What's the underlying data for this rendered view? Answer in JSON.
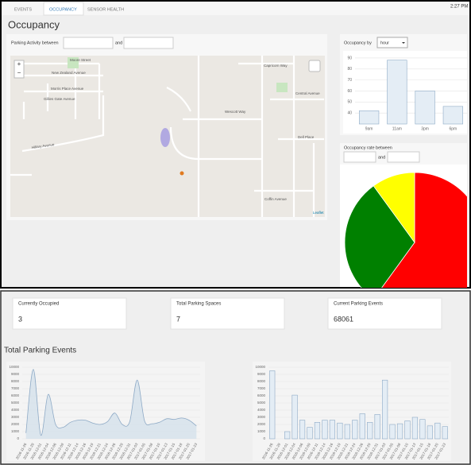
{
  "tabs": [
    "EVENTS",
    "OCCUPANCY",
    "SENSOR HEALTH"
  ],
  "clock": "2:27 PM",
  "page_title": "Occupancy",
  "activity_filter": {
    "label": "Parking Activity between",
    "and": "and"
  },
  "map": {
    "zoom_in": "+",
    "zoom_out": "−",
    "attribution": "Leaflet",
    "labels": [
      "Moore Street",
      "New Zealand Avenue",
      "Morris Place Avenue",
      "Gillies Gate Avenue",
      "Hillary Avenue",
      "Capricorn Way",
      "Central Avenue",
      "Wescott Way",
      "Dell Place",
      "Coffin Avenue"
    ]
  },
  "occupancy_by": {
    "label": "Occupancy by",
    "select": "hour"
  },
  "rate_filter": {
    "label": "Occupancy rate between",
    "and": "and"
  },
  "cards": [
    {
      "label": "Currently Occupied",
      "value": 3
    },
    {
      "label": "Total Parking Spaces",
      "value": 7
    },
    {
      "label": "Current Parking Events",
      "value": 68061
    }
  ],
  "events_title": "Total Parking Events",
  "chart_data": [
    {
      "type": "bar",
      "categories": [
        "9am",
        "11am",
        "3pm",
        "6pm"
      ],
      "values": [
        42,
        88,
        60,
        46
      ],
      "color": "#e4edf5",
      "edge_color": "#8eaac6",
      "ylim": [
        30,
        95
      ],
      "yticks": [
        40,
        50,
        60,
        70,
        80,
        90
      ],
      "grid": true
    },
    {
      "type": "pie",
      "values": [
        60,
        30,
        10
      ],
      "colors": [
        "#ff0000",
        "#008000",
        "#ffff00"
      ]
    },
    {
      "type": "line",
      "categories": [
        "2016-11-26",
        "2016-11-29",
        "2016-12-01",
        "2016-12-04",
        "2016-12-06",
        "2016-12-09",
        "2016-12-11",
        "2016-12-14",
        "2016-12-16",
        "2016-12-19",
        "2016-12-21",
        "2016-12-24",
        "2016-12-26",
        "2016-12-29",
        "2016-12-31",
        "2017-01-03",
        "2017-01-05",
        "2017-01-08",
        "2017-01-10",
        "2017-01-13",
        "2017-01-15",
        "2017-01-18",
        "2017-01-20",
        "2017-01-23"
      ],
      "values": [
        800,
        9700,
        500,
        6200,
        2000,
        1600,
        2300,
        2600,
        2600,
        2200,
        2000,
        2400,
        3600,
        2000,
        2400,
        8200,
        2500,
        2100,
        2300,
        2800,
        2700,
        2900,
        2600,
        1800
      ],
      "color": "#8eaac6",
      "fill": "#d5e1eb",
      "ylim": [
        0,
        10000
      ],
      "yticks": [
        0,
        1000,
        2000,
        3000,
        4000,
        5000,
        6000,
        7000,
        8000,
        9000,
        10000
      ],
      "grid": true
    },
    {
      "type": "bar",
      "categories": [
        "2016-11-26",
        "2016-11-29",
        "2016-12-01",
        "2016-12-04",
        "2016-12-06",
        "2016-12-09",
        "2016-12-11",
        "2016-12-14",
        "2016-12-16",
        "2016-12-19",
        "2016-12-21",
        "2016-12-24",
        "2016-12-26",
        "2016-12-29",
        "2016-12-31",
        "2017-01-03",
        "2017-01-05",
        "2017-01-08",
        "2017-01-10",
        "2017-01-13",
        "2017-01-15",
        "2017-01-18",
        "2017-01-20",
        "2017-01-23"
      ],
      "values": [
        9500,
        0,
        1000,
        6100,
        2600,
        1600,
        2300,
        2600,
        2600,
        2200,
        2000,
        2600,
        3500,
        2300,
        3400,
        8200,
        2000,
        2100,
        2500,
        3000,
        2700,
        1800,
        2200,
        1700
      ],
      "color": "#e4edf5",
      "edge_color": "#8eaac6",
      "ylim": [
        0,
        10000
      ],
      "yticks": [
        0,
        1000,
        2000,
        3000,
        4000,
        5000,
        6000,
        7000,
        8000,
        9000,
        10000
      ],
      "grid": true
    }
  ]
}
